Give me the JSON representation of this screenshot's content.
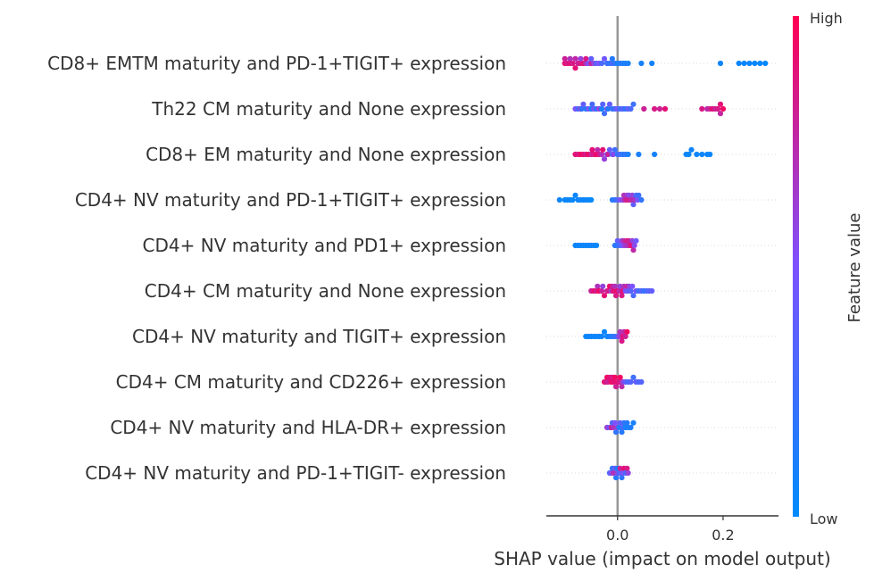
{
  "chart_data": {
    "type": "scatter",
    "subtype": "shap_beeswarm",
    "xlabel": "SHAP value (impact on model output)",
    "ylabel": "",
    "xlim": [
      -0.135,
      0.305
    ],
    "xticks": [
      {
        "value": 0.0,
        "label": "0.0"
      },
      {
        "value": 0.2,
        "label": "0.2"
      }
    ],
    "zero_line": true,
    "grid": false,
    "colorbar": {
      "label": "Feature value",
      "high_label": "High",
      "low_label": "Low",
      "low_color": "#008bfb",
      "high_color": "#ff0052"
    },
    "features": [
      {
        "name": "CD8+ EMTM maturity and PD-1+TIGIT+ expression",
        "points": [
          [
            -0.1,
            0.9
          ],
          [
            -0.1,
            0.8
          ],
          [
            -0.095,
            0.85
          ],
          [
            -0.09,
            0.9
          ],
          [
            -0.09,
            0.7
          ],
          [
            -0.085,
            0.85
          ],
          [
            -0.08,
            0.75
          ],
          [
            -0.08,
            0.9
          ],
          [
            -0.075,
            0.8
          ],
          [
            -0.07,
            0.85
          ],
          [
            -0.07,
            0.6
          ],
          [
            -0.065,
            0.9
          ],
          [
            -0.06,
            0.7
          ],
          [
            -0.06,
            0.85
          ],
          [
            -0.055,
            0.5
          ],
          [
            -0.05,
            0.8
          ],
          [
            -0.05,
            0.4
          ],
          [
            -0.045,
            0.6
          ],
          [
            -0.04,
            0.35
          ],
          [
            -0.035,
            0.5
          ],
          [
            -0.03,
            0.3
          ],
          [
            -0.025,
            0.45
          ],
          [
            -0.02,
            0.25
          ],
          [
            -0.015,
            0.2
          ],
          [
            -0.01,
            0.3
          ],
          [
            -0.01,
            0.15
          ],
          [
            -0.005,
            0.2
          ],
          [
            0.0,
            0.1
          ],
          [
            0.005,
            0.15
          ],
          [
            0.01,
            0.1
          ],
          [
            0.015,
            0.12
          ],
          [
            0.02,
            0.1
          ],
          [
            0.045,
            0.1
          ],
          [
            0.065,
            0.08
          ],
          [
            0.195,
            0.06
          ],
          [
            0.23,
            0.05
          ],
          [
            0.24,
            0.04
          ],
          [
            0.25,
            0.05
          ],
          [
            0.26,
            0.04
          ],
          [
            0.27,
            0.03
          ],
          [
            0.28,
            0.03
          ]
        ]
      },
      {
        "name": "Th22 CM maturity and None expression",
        "points": [
          [
            -0.08,
            0.5
          ],
          [
            -0.075,
            0.3
          ],
          [
            -0.07,
            0.6
          ],
          [
            -0.068,
            0.2
          ],
          [
            -0.065,
            0.4
          ],
          [
            -0.06,
            0.15
          ],
          [
            -0.055,
            0.5
          ],
          [
            -0.05,
            0.1
          ],
          [
            -0.048,
            0.3
          ],
          [
            -0.045,
            0.45
          ],
          [
            -0.04,
            0.2
          ],
          [
            -0.035,
            0.6
          ],
          [
            -0.03,
            0.1
          ],
          [
            -0.028,
            0.35
          ],
          [
            -0.025,
            0.25
          ],
          [
            -0.02,
            0.55
          ],
          [
            -0.018,
            0.15
          ],
          [
            -0.015,
            0.4
          ],
          [
            -0.01,
            0.2
          ],
          [
            -0.005,
            0.3
          ],
          [
            0.0,
            0.45
          ],
          [
            0.005,
            0.25
          ],
          [
            0.01,
            0.35
          ],
          [
            0.015,
            0.2
          ],
          [
            0.02,
            0.4
          ],
          [
            0.025,
            0.3
          ],
          [
            0.03,
            0.25
          ],
          [
            0.05,
            0.8
          ],
          [
            0.07,
            0.85
          ],
          [
            0.08,
            0.8
          ],
          [
            0.09,
            0.9
          ],
          [
            0.16,
            0.85
          ],
          [
            0.17,
            0.75
          ],
          [
            0.175,
            0.8
          ],
          [
            0.18,
            0.9
          ],
          [
            0.185,
            0.8
          ],
          [
            0.19,
            0.85
          ],
          [
            0.195,
            0.9
          ],
          [
            0.2,
            0.95
          ],
          [
            0.195,
            0.78
          ]
        ]
      },
      {
        "name": "CD8+ EM maturity and None expression",
        "points": [
          [
            -0.08,
            0.9
          ],
          [
            -0.075,
            0.85
          ],
          [
            -0.07,
            0.95
          ],
          [
            -0.065,
            0.9
          ],
          [
            -0.06,
            0.85
          ],
          [
            -0.055,
            0.95
          ],
          [
            -0.05,
            0.8
          ],
          [
            -0.048,
            0.9
          ],
          [
            -0.045,
            0.85
          ],
          [
            -0.04,
            0.95
          ],
          [
            -0.038,
            0.75
          ],
          [
            -0.035,
            0.85
          ],
          [
            -0.03,
            0.7
          ],
          [
            -0.028,
            0.9
          ],
          [
            -0.025,
            0.6
          ],
          [
            -0.02,
            0.5
          ],
          [
            -0.018,
            0.8
          ],
          [
            -0.015,
            0.4
          ],
          [
            -0.01,
            0.3
          ],
          [
            -0.008,
            0.55
          ],
          [
            -0.005,
            0.25
          ],
          [
            0.0,
            0.2
          ],
          [
            0.005,
            0.3
          ],
          [
            0.01,
            0.15
          ],
          [
            0.015,
            0.2
          ],
          [
            0.02,
            0.1
          ],
          [
            0.04,
            0.1
          ],
          [
            0.07,
            0.08
          ],
          [
            0.13,
            0.05
          ],
          [
            0.135,
            0.04
          ],
          [
            0.14,
            0.06
          ],
          [
            0.15,
            0.05
          ],
          [
            0.16,
            0.05
          ],
          [
            0.17,
            0.04
          ],
          [
            0.175,
            0.04
          ]
        ]
      },
      {
        "name": "CD4+ NV maturity and PD-1+TIGIT+ expression",
        "points": [
          [
            -0.11,
            0.05
          ],
          [
            -0.1,
            0.03
          ],
          [
            -0.095,
            0.05
          ],
          [
            -0.09,
            0.04
          ],
          [
            -0.085,
            0.03
          ],
          [
            -0.08,
            0.05
          ],
          [
            -0.075,
            0.04
          ],
          [
            -0.07,
            0.06
          ],
          [
            -0.065,
            0.05
          ],
          [
            -0.06,
            0.04
          ],
          [
            -0.055,
            0.05
          ],
          [
            -0.05,
            0.03
          ],
          [
            -0.01,
            0.15
          ],
          [
            -0.005,
            0.2
          ],
          [
            0.0,
            0.3
          ],
          [
            0.005,
            0.5
          ],
          [
            0.01,
            0.6
          ],
          [
            0.012,
            0.7
          ],
          [
            0.015,
            0.8
          ],
          [
            0.018,
            0.65
          ],
          [
            0.02,
            0.85
          ],
          [
            0.022,
            0.55
          ],
          [
            0.025,
            0.75
          ],
          [
            0.028,
            0.6
          ],
          [
            0.03,
            0.4
          ],
          [
            0.032,
            0.7
          ],
          [
            0.035,
            0.3
          ],
          [
            0.038,
            0.5
          ],
          [
            0.04,
            0.25
          ],
          [
            0.045,
            0.2
          ]
        ]
      },
      {
        "name": "CD4+ NV maturity and PD1+ expression",
        "points": [
          [
            -0.08,
            0.05
          ],
          [
            -0.075,
            0.04
          ],
          [
            -0.07,
            0.06
          ],
          [
            -0.065,
            0.05
          ],
          [
            -0.06,
            0.04
          ],
          [
            -0.055,
            0.05
          ],
          [
            -0.05,
            0.06
          ],
          [
            -0.045,
            0.05
          ],
          [
            -0.04,
            0.04
          ],
          [
            -0.005,
            0.15
          ],
          [
            0.0,
            0.2
          ],
          [
            0.0,
            0.4
          ],
          [
            0.005,
            0.3
          ],
          [
            0.008,
            0.6
          ],
          [
            0.01,
            0.5
          ],
          [
            0.012,
            0.75
          ],
          [
            0.015,
            0.65
          ],
          [
            0.018,
            0.85
          ],
          [
            0.02,
            0.7
          ],
          [
            0.022,
            0.8
          ],
          [
            0.025,
            0.9
          ],
          [
            0.028,
            0.6
          ],
          [
            0.03,
            0.75
          ],
          [
            0.032,
            0.55
          ],
          [
            0.035,
            0.45
          ]
        ]
      },
      {
        "name": "CD4+ CM maturity and None expression",
        "points": [
          [
            -0.05,
            0.8
          ],
          [
            -0.045,
            0.9
          ],
          [
            -0.04,
            0.85
          ],
          [
            -0.038,
            0.7
          ],
          [
            -0.035,
            0.95
          ],
          [
            -0.03,
            0.8
          ],
          [
            -0.028,
            0.6
          ],
          [
            -0.025,
            0.9
          ],
          [
            -0.02,
            0.75
          ],
          [
            -0.018,
            0.85
          ],
          [
            -0.015,
            0.95
          ],
          [
            -0.012,
            0.65
          ],
          [
            -0.01,
            0.8
          ],
          [
            -0.008,
            0.9
          ],
          [
            -0.005,
            0.7
          ],
          [
            -0.003,
            0.85
          ],
          [
            0.0,
            0.95
          ],
          [
            0.003,
            0.75
          ],
          [
            0.005,
            0.6
          ],
          [
            0.008,
            0.85
          ],
          [
            0.01,
            0.9
          ],
          [
            0.012,
            0.7
          ],
          [
            0.015,
            0.5
          ],
          [
            0.018,
            0.8
          ],
          [
            0.02,
            0.4
          ],
          [
            0.022,
            0.6
          ],
          [
            0.025,
            0.35
          ],
          [
            0.028,
            0.5
          ],
          [
            0.03,
            0.3
          ],
          [
            0.035,
            0.45
          ],
          [
            0.04,
            0.25
          ],
          [
            0.045,
            0.35
          ],
          [
            0.05,
            0.2
          ],
          [
            0.055,
            0.3
          ],
          [
            0.06,
            0.35
          ],
          [
            0.065,
            0.4
          ]
        ]
      },
      {
        "name": "CD4+ NV maturity and TIGIT+ expression",
        "points": [
          [
            -0.06,
            0.05
          ],
          [
            -0.055,
            0.04
          ],
          [
            -0.05,
            0.06
          ],
          [
            -0.045,
            0.05
          ],
          [
            -0.04,
            0.04
          ],
          [
            -0.035,
            0.05
          ],
          [
            -0.03,
            0.06
          ],
          [
            -0.025,
            0.05
          ],
          [
            -0.02,
            0.04
          ],
          [
            -0.015,
            0.1
          ],
          [
            -0.01,
            0.15
          ],
          [
            -0.005,
            0.2
          ],
          [
            0.0,
            0.3
          ],
          [
            0.003,
            0.6
          ],
          [
            0.005,
            0.7
          ],
          [
            0.008,
            0.85
          ],
          [
            0.01,
            0.9
          ],
          [
            0.012,
            0.75
          ],
          [
            0.015,
            0.8
          ],
          [
            0.018,
            0.95
          ]
        ]
      },
      {
        "name": "CD4+ CM maturity and CD226+ expression",
        "points": [
          [
            -0.025,
            0.9
          ],
          [
            -0.022,
            0.85
          ],
          [
            -0.02,
            0.95
          ],
          [
            -0.018,
            0.8
          ],
          [
            -0.015,
            0.9
          ],
          [
            -0.012,
            0.95
          ],
          [
            -0.01,
            0.85
          ],
          [
            -0.008,
            0.9
          ],
          [
            -0.005,
            0.95
          ],
          [
            -0.003,
            0.8
          ],
          [
            0.0,
            0.9
          ],
          [
            0.003,
            0.85
          ],
          [
            0.005,
            0.95
          ],
          [
            0.008,
            0.75
          ],
          [
            0.01,
            0.6
          ],
          [
            0.015,
            0.4
          ],
          [
            0.02,
            0.3
          ],
          [
            0.025,
            0.35
          ],
          [
            0.03,
            0.25
          ],
          [
            0.035,
            0.4
          ],
          [
            0.04,
            0.3
          ],
          [
            0.045,
            0.35
          ]
        ]
      },
      {
        "name": "CD4+ NV maturity and HLA-DR+ expression",
        "points": [
          [
            -0.02,
            0.6
          ],
          [
            -0.015,
            0.4
          ],
          [
            -0.012,
            0.8
          ],
          [
            -0.01,
            0.3
          ],
          [
            -0.008,
            0.7
          ],
          [
            -0.005,
            0.5
          ],
          [
            -0.003,
            0.2
          ],
          [
            0.0,
            0.6
          ],
          [
            0.003,
            0.1
          ],
          [
            0.005,
            0.4
          ],
          [
            0.008,
            0.15
          ],
          [
            0.01,
            0.3
          ],
          [
            0.012,
            0.2
          ],
          [
            0.015,
            0.1
          ],
          [
            0.018,
            0.15
          ],
          [
            0.02,
            0.1
          ],
          [
            0.025,
            0.12
          ],
          [
            0.03,
            0.1
          ]
        ]
      },
      {
        "name": "CD4+ NV maturity and PD-1+TIGIT- expression",
        "points": [
          [
            -0.015,
            0.3
          ],
          [
            -0.012,
            0.5
          ],
          [
            -0.01,
            0.2
          ],
          [
            -0.008,
            0.7
          ],
          [
            -0.005,
            0.4
          ],
          [
            -0.003,
            0.15
          ],
          [
            0.0,
            0.6
          ],
          [
            0.0,
            0.1
          ],
          [
            0.003,
            0.35
          ],
          [
            0.005,
            0.8
          ],
          [
            0.008,
            0.2
          ],
          [
            0.01,
            0.5
          ],
          [
            0.012,
            0.9
          ],
          [
            0.015,
            0.3
          ],
          [
            0.018,
            0.85
          ],
          [
            0.02,
            0.6
          ]
        ]
      }
    ]
  }
}
